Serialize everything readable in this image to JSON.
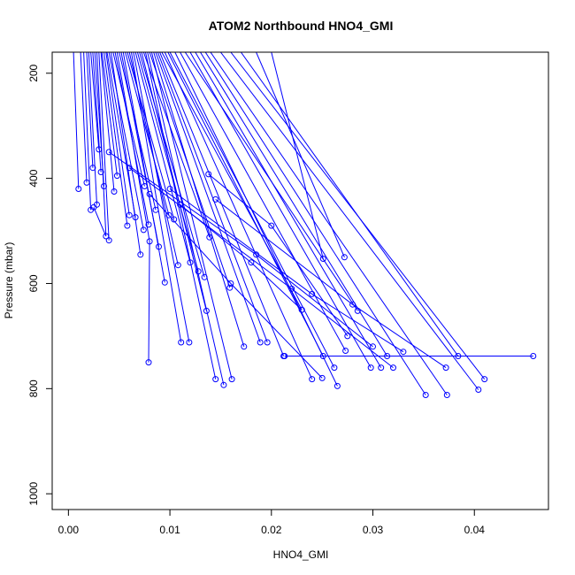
{
  "chart_data": {
    "type": "line",
    "title": "ATOM2 Northbound HNO4_GMI",
    "xlabel": "HNO4_GMI",
    "ylabel": "Pressure (mbar)",
    "xlim": [
      -0.0016,
      0.0473
    ],
    "ylim": [
      1030,
      160
    ],
    "y_reversed": true,
    "x_ticks": [
      0.0,
      0.01,
      0.02,
      0.03,
      0.04
    ],
    "x_tick_labels": [
      "0.00",
      "0.01",
      "0.02",
      "0.03",
      "0.04"
    ],
    "y_ticks": [
      200,
      400,
      600,
      800,
      1000
    ],
    "y_tick_labels": [
      "200",
      "400",
      "600",
      "800",
      "1000"
    ],
    "color": "#0000ff",
    "grid": false,
    "legend": "none",
    "series": [
      {
        "x": [
          0.0005,
          0.001
        ],
        "y": [
          160,
          420
        ]
      },
      {
        "x": [
          0.0012,
          0.0018
        ],
        "y": [
          160,
          408
        ]
      },
      {
        "x": [
          0.0015,
          0.0022
        ],
        "y": [
          160,
          460
        ]
      },
      {
        "x": [
          0.0018,
          0.0024
        ],
        "y": [
          160,
          380
        ]
      },
      {
        "x": [
          0.002,
          0.0028
        ],
        "y": [
          160,
          450
        ]
      },
      {
        "x": [
          0.0022,
          0.003
        ],
        "y": [
          160,
          345
        ]
      },
      {
        "x": [
          0.0024,
          0.0032
        ],
        "y": [
          160,
          388
        ]
      },
      {
        "x": [
          0.0026,
          0.0035
        ],
        "y": [
          160,
          415
        ]
      },
      {
        "x": [
          0.0028,
          0.0037,
          0.0025
        ],
        "y": [
          160,
          510,
          455
        ]
      },
      {
        "x": [
          0.003,
          0.004
        ],
        "y": [
          160,
          518
        ]
      },
      {
        "x": [
          0.0032,
          0.0045
        ],
        "y": [
          160,
          425
        ]
      },
      {
        "x": [
          0.0033,
          0.0048
        ],
        "y": [
          160,
          395
        ]
      },
      {
        "x": [
          0.0035,
          0.0058
        ],
        "y": [
          160,
          490
        ]
      },
      {
        "x": [
          0.0037,
          0.006
        ],
        "y": [
          160,
          470
        ]
      },
      {
        "x": [
          0.0038,
          0.0066
        ],
        "y": [
          160,
          474
        ]
      },
      {
        "x": [
          0.004,
          0.0074
        ],
        "y": [
          160,
          498
        ]
      },
      {
        "x": [
          0.0042,
          0.0071
        ],
        "y": [
          160,
          545
        ]
      },
      {
        "x": [
          0.0044,
          0.0075
        ],
        "y": [
          160,
          415
        ]
      },
      {
        "x": [
          0.0046,
          0.0079
        ],
        "y": [
          160,
          488
        ]
      },
      {
        "x": [
          0.0048,
          0.008,
          0.0079
        ],
        "y": [
          160,
          520,
          750
        ]
      },
      {
        "x": [
          0.005,
          0.0086
        ],
        "y": [
          160,
          460
        ]
      },
      {
        "x": [
          0.0052,
          0.0089
        ],
        "y": [
          160,
          530
        ]
      },
      {
        "x": [
          0.0054,
          0.0095
        ],
        "y": [
          160,
          598
        ]
      },
      {
        "x": [
          0.0056,
          0.0099
        ],
        "y": [
          160,
          470
        ]
      },
      {
        "x": [
          0.0058,
          0.0104
        ],
        "y": [
          160,
          478
        ]
      },
      {
        "x": [
          0.006,
          0.0108
        ],
        "y": [
          160,
          565
        ]
      },
      {
        "x": [
          0.0062,
          0.0111
        ],
        "y": [
          160,
          712
        ]
      },
      {
        "x": [
          0.0064,
          0.0119
        ],
        "y": [
          160,
          712
        ]
      },
      {
        "x": [
          0.0066,
          0.012
        ],
        "y": [
          160,
          560
        ]
      },
      {
        "x": [
          0.0068,
          0.0128
        ],
        "y": [
          160,
          577
        ]
      },
      {
        "x": [
          0.007,
          0.0134
        ],
        "y": [
          160,
          588
        ]
      },
      {
        "x": [
          0.0072,
          0.0136
        ],
        "y": [
          160,
          652
        ]
      },
      {
        "x": [
          0.0074,
          0.0139
        ],
        "y": [
          160,
          512
        ]
      },
      {
        "x": [
          0.0076,
          0.0145
        ],
        "y": [
          160,
          782
        ]
      },
      {
        "x": [
          0.0078,
          0.0153
        ],
        "y": [
          160,
          793
        ]
      },
      {
        "x": [
          0.008,
          0.0159
        ],
        "y": [
          160,
          608
        ]
      },
      {
        "x": [
          0.0082,
          0.0161
        ],
        "y": [
          160,
          782
        ]
      },
      {
        "x": [
          0.0084,
          0.0173
        ],
        "y": [
          160,
          720
        ]
      },
      {
        "x": [
          0.0086,
          0.0189
        ],
        "y": [
          160,
          712
        ]
      },
      {
        "x": [
          0.0088,
          0.0196
        ],
        "y": [
          160,
          712
        ]
      },
      {
        "x": [
          0.009,
          0.0212
        ],
        "y": [
          160,
          738
        ]
      },
      {
        "x": [
          0.0092,
          0.023
        ],
        "y": [
          160,
          650
        ]
      },
      {
        "x": [
          0.0095,
          0.024
        ],
        "y": [
          160,
          782
        ]
      },
      {
        "x": [
          0.0098,
          0.0251
        ],
        "y": [
          160,
          738
        ]
      },
      {
        "x": [
          0.01,
          0.0262
        ],
        "y": [
          160,
          760
        ]
      },
      {
        "x": [
          0.0105,
          0.0265
        ],
        "y": [
          160,
          795
        ]
      },
      {
        "x": [
          0.011,
          0.0273
        ],
        "y": [
          160,
          728
        ]
      },
      {
        "x": [
          0.0115,
          0.0285
        ],
        "y": [
          160,
          652
        ]
      },
      {
        "x": [
          0.012,
          0.0298
        ],
        "y": [
          160,
          760
        ]
      },
      {
        "x": [
          0.0125,
          0.0308
        ],
        "y": [
          160,
          760
        ]
      },
      {
        "x": [
          0.013,
          0.0314
        ],
        "y": [
          160,
          738
        ]
      },
      {
        "x": [
          0.0135,
          0.0352
        ],
        "y": [
          160,
          812
        ]
      },
      {
        "x": [
          0.014,
          0.0373
        ],
        "y": [
          160,
          812
        ]
      },
      {
        "x": [
          0.015,
          0.0404
        ],
        "y": [
          160,
          802
        ]
      },
      {
        "x": [
          0.016,
          0.041
        ],
        "y": [
          160,
          782
        ]
      },
      {
        "x": [
          0.017,
          0.0384
        ],
        "y": [
          160,
          738
        ]
      },
      {
        "x": [
          0.0185,
          0.0272
        ],
        "y": [
          160,
          550
        ]
      },
      {
        "x": [
          0.02,
          0.0251
        ],
        "y": [
          160,
          553
        ]
      },
      {
        "x": [
          0.0213,
          0.0458
        ],
        "y": [
          738,
          738
        ]
      },
      {
        "x": [
          0.0138,
          0.02,
          0.0275
        ],
        "y": [
          392,
          490,
          700
        ]
      },
      {
        "x": [
          0.004,
          0.0185,
          0.03
        ],
        "y": [
          350,
          545,
          720
        ]
      },
      {
        "x": [
          0.006,
          0.022,
          0.032
        ],
        "y": [
          380,
          610,
          760
        ]
      },
      {
        "x": [
          0.01,
          0.024,
          0.033
        ],
        "y": [
          420,
          620,
          730
        ]
      },
      {
        "x": [
          0.0145,
          0.028,
          0.0372
        ],
        "y": [
          440,
          640,
          760
        ]
      },
      {
        "x": [
          0.008,
          0.016,
          0.025
        ],
        "y": [
          430,
          600,
          780
        ]
      },
      {
        "x": [
          0.011,
          0.018,
          0.023
        ],
        "y": [
          450,
          560,
          650
        ]
      }
    ]
  }
}
